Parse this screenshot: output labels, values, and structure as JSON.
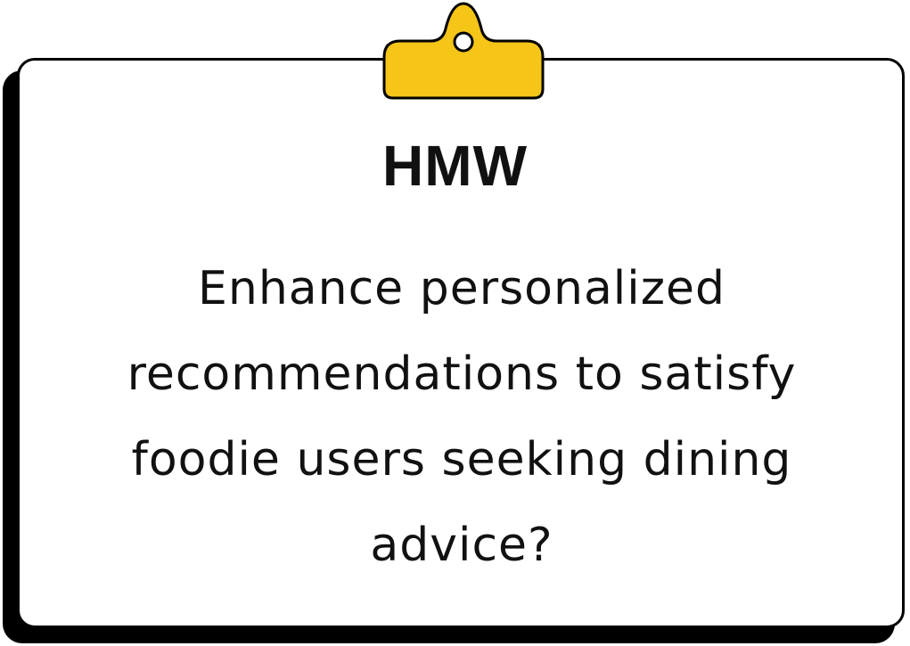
{
  "card": {
    "title": "HMW",
    "body": "Enhance personalized recommendations to satisfy foodie users seeking dining advice?"
  },
  "colors": {
    "clip": "#F5C518",
    "outline": "#000000",
    "card_background": "#FFFFFF"
  },
  "icons": {
    "clip": "clip-icon"
  }
}
